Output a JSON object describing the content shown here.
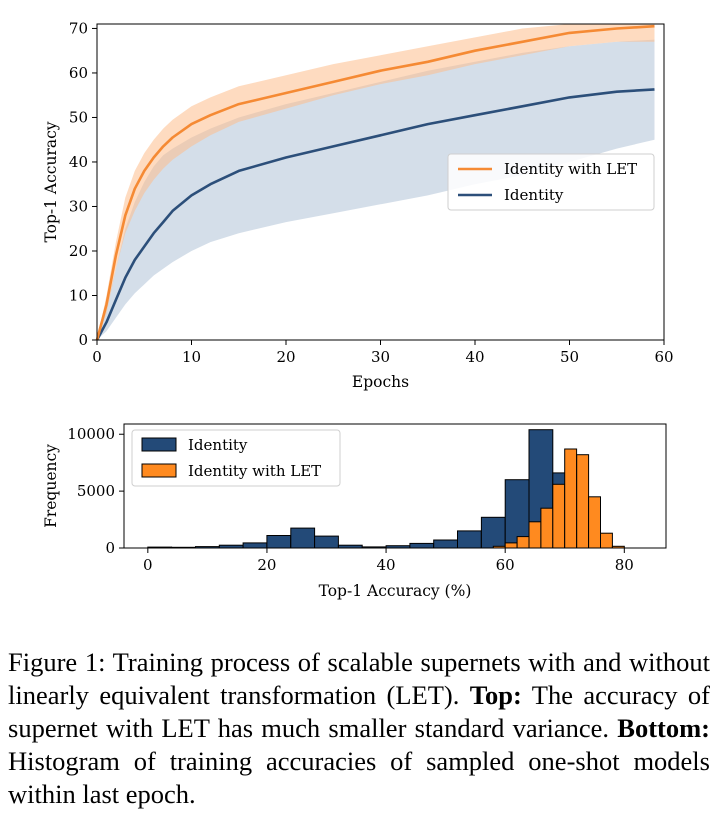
{
  "chart_data": [
    {
      "type": "line",
      "title": "",
      "xlabel": "Epochs",
      "ylabel": "Top-1 Accuracy",
      "xlim": [
        0,
        60
      ],
      "ylim": [
        0,
        71
      ],
      "xticks": [
        0,
        10,
        20,
        30,
        40,
        50,
        60
      ],
      "yticks": [
        0,
        10,
        20,
        30,
        40,
        50,
        60,
        70
      ],
      "legend_position": "center-right",
      "x": [
        0,
        1,
        2,
        3,
        4,
        5,
        6,
        7,
        8,
        10,
        12,
        15,
        20,
        25,
        30,
        35,
        40,
        45,
        50,
        55,
        59
      ],
      "series": [
        {
          "name": "Identity with LET",
          "color": "#f58a34",
          "values": [
            0,
            8,
            19,
            28,
            34,
            38,
            41,
            43.5,
            45.5,
            48.5,
            50.5,
            53,
            55.5,
            58,
            60.5,
            62.5,
            65,
            67,
            69,
            70,
            70.5
          ],
          "lower": [
            0,
            6,
            16,
            24,
            29,
            33,
            36,
            38.5,
            40.5,
            43.5,
            46,
            49,
            52,
            55,
            57.5,
            59.5,
            62,
            64,
            66,
            67,
            67
          ],
          "upper": [
            0,
            10,
            22,
            32,
            38,
            42,
            45,
            47.5,
            49.5,
            52.5,
            54.5,
            57,
            59.5,
            62,
            64,
            66,
            68,
            70,
            71,
            71,
            71
          ]
        },
        {
          "name": "Identity",
          "color": "#2c4f7a",
          "values": [
            0,
            4,
            9,
            14,
            18,
            21,
            24,
            26.5,
            29,
            32.5,
            35,
            38,
            41,
            43.5,
            46,
            48.5,
            50.5,
            52.5,
            54.5,
            55.8,
            56.3
          ],
          "lower": [
            0,
            2,
            5,
            8,
            10.5,
            12.5,
            14.5,
            16,
            17.5,
            20,
            22,
            24,
            26.5,
            28.5,
            30.5,
            32.5,
            35,
            37,
            40,
            43,
            45
          ],
          "upper": [
            0,
            7,
            16,
            25,
            31,
            35.5,
            39,
            41.5,
            43,
            45.5,
            47.5,
            50,
            53,
            55.5,
            58,
            60.5,
            62.5,
            64.5,
            66,
            67,
            67.5
          ]
        }
      ]
    },
    {
      "type": "bar",
      "title": "",
      "xlabel": "Top-1 Accuracy (%)",
      "ylabel": "Frequency",
      "xlim": [
        -4,
        87
      ],
      "ylim": [
        0,
        10900
      ],
      "xticks": [
        0,
        20,
        40,
        60,
        80
      ],
      "yticks": [
        0,
        5000,
        10000
      ],
      "legend_position": "upper-left",
      "bin_width": 4,
      "series": [
        {
          "name": "Identity",
          "color": "#234a78",
          "bins": [
            0,
            4,
            8,
            12,
            16,
            20,
            24,
            28,
            32,
            36,
            40,
            44,
            48,
            52,
            56,
            60,
            64,
            68
          ],
          "values": [
            80,
            60,
            120,
            250,
            450,
            1100,
            1750,
            1050,
            250,
            100,
            200,
            400,
            700,
            1500,
            2700,
            6000,
            10400,
            6600
          ]
        },
        {
          "name": "Identity with LET",
          "color": "#ff8a1f",
          "bins": [
            58,
            60,
            62,
            64,
            66,
            68,
            70,
            72,
            74,
            76,
            78
          ],
          "values": [
            150,
            450,
            1000,
            2300,
            3500,
            5600,
            8700,
            8200,
            4500,
            1300,
            150
          ]
        }
      ]
    }
  ],
  "caption": {
    "label": "Figure 1:",
    "text1": "Training process of scalable supernets with and without linearly equivalent transformation (LET).",
    "top_label": "Top:",
    "text2": "The accuracy of supernet with LET has much smaller standard variance.",
    "bottom_label": "Bottom:",
    "text3": "Histogram of training accuracies of sampled one-shot models within last epoch."
  }
}
